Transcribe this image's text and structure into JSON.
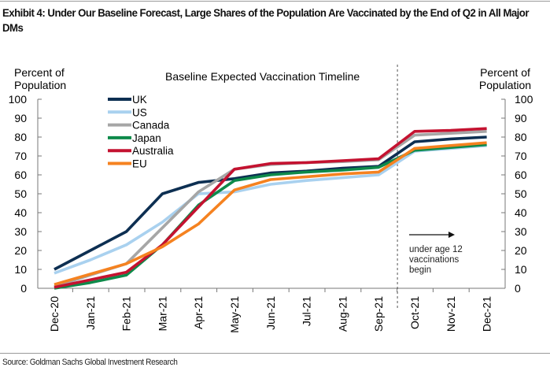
{
  "exhibit": {
    "title": "Exhibit 4: Under Our Baseline Forecast, Large Shares of the Population Are Vaccinated by the End of Q2 in All Major DMs",
    "source": "Source: Goldman Sachs Global Investment Research"
  },
  "chart_data": {
    "type": "line",
    "title": "Baseline Expected Vaccination Timeline",
    "ylabel_left": [
      "Percent of",
      "Population"
    ],
    "ylabel_right": [
      "Percent of",
      "Population"
    ],
    "xlabel": "",
    "ylim": [
      0,
      100
    ],
    "yticks": [
      0,
      10,
      20,
      30,
      40,
      50,
      60,
      70,
      80,
      90,
      100
    ],
    "x": [
      "Dec-20",
      "Jan-21",
      "Feb-21",
      "Mar-21",
      "Apr-21",
      "May-21",
      "Jun-21",
      "Jul-21",
      "Aug-21",
      "Sep-21",
      "Oct-21",
      "Nov-21",
      "Dec-21"
    ],
    "grid": false,
    "legend_position": "top-left",
    "series": [
      {
        "name": "UK",
        "color": "#0d2f52",
        "values": [
          10,
          20,
          30,
          50,
          56,
          58,
          61,
          62,
          63.5,
          64.5,
          77.5,
          79,
          80
        ]
      },
      {
        "name": "US",
        "color": "#a9d1ef",
        "values": [
          8,
          15,
          23,
          35,
          50,
          51,
          55,
          57,
          58.5,
          60,
          72.5,
          74,
          75.5
        ]
      },
      {
        "name": "Canada",
        "color": "#a6a6a6",
        "values": [
          1,
          7,
          13,
          32,
          51,
          63,
          65.5,
          66.5,
          67,
          68,
          81,
          82,
          83
        ]
      },
      {
        "name": "Japan",
        "color": "#0e8a4a",
        "values": [
          0,
          3,
          7,
          23,
          44,
          57,
          60,
          61.5,
          62.5,
          64,
          73,
          74.5,
          76
        ]
      },
      {
        "name": "Australia",
        "color": "#c41230",
        "values": [
          0.5,
          4.5,
          8.5,
          23,
          43,
          63,
          66,
          66.5,
          67.5,
          68.5,
          83,
          83.5,
          84.5
        ]
      },
      {
        "name": "EU",
        "color": "#f58220",
        "values": [
          2,
          7.5,
          13,
          22,
          34,
          52,
          57.5,
          59,
          60.5,
          61.5,
          74,
          75.5,
          77
        ]
      }
    ],
    "divider_after": "Sep-21",
    "annotation": {
      "lines": [
        "under age 12",
        "vaccinations",
        "begin"
      ],
      "arrow": "right-arrow"
    }
  }
}
